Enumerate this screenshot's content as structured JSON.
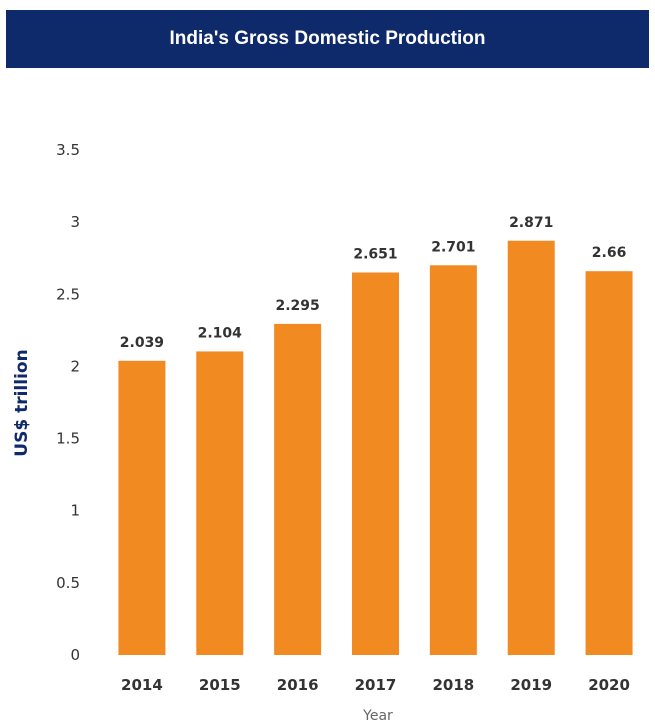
{
  "header": {
    "title": "India's Gross Domestic Production"
  },
  "colors": {
    "title_background": "#0f2a6b",
    "bar": "#f28a22",
    "axis_title_y": "#0f2a6b"
  },
  "chart_data": {
    "type": "bar",
    "title": "India's Gross Domestic Production",
    "xlabel": "Year",
    "ylabel": "US$ trillion",
    "categories": [
      "2014",
      "2015",
      "2016",
      "2017",
      "2018",
      "2019",
      "2020"
    ],
    "values": [
      2.039,
      2.104,
      2.295,
      2.651,
      2.701,
      2.871,
      2.66
    ],
    "data_labels": [
      "2.039",
      "2.104",
      "2.295",
      "2.651",
      "2.701",
      "2.871",
      "2.66"
    ],
    "ylim": [
      0,
      3.5
    ],
    "yticks": [
      0,
      0.5,
      1,
      1.5,
      2,
      2.5,
      3,
      3.5
    ],
    "ytick_labels": [
      "0",
      "0.5",
      "1",
      "1.5",
      "2",
      "2.5",
      "3",
      "3.5"
    ],
    "grid": false,
    "legend": "none"
  }
}
